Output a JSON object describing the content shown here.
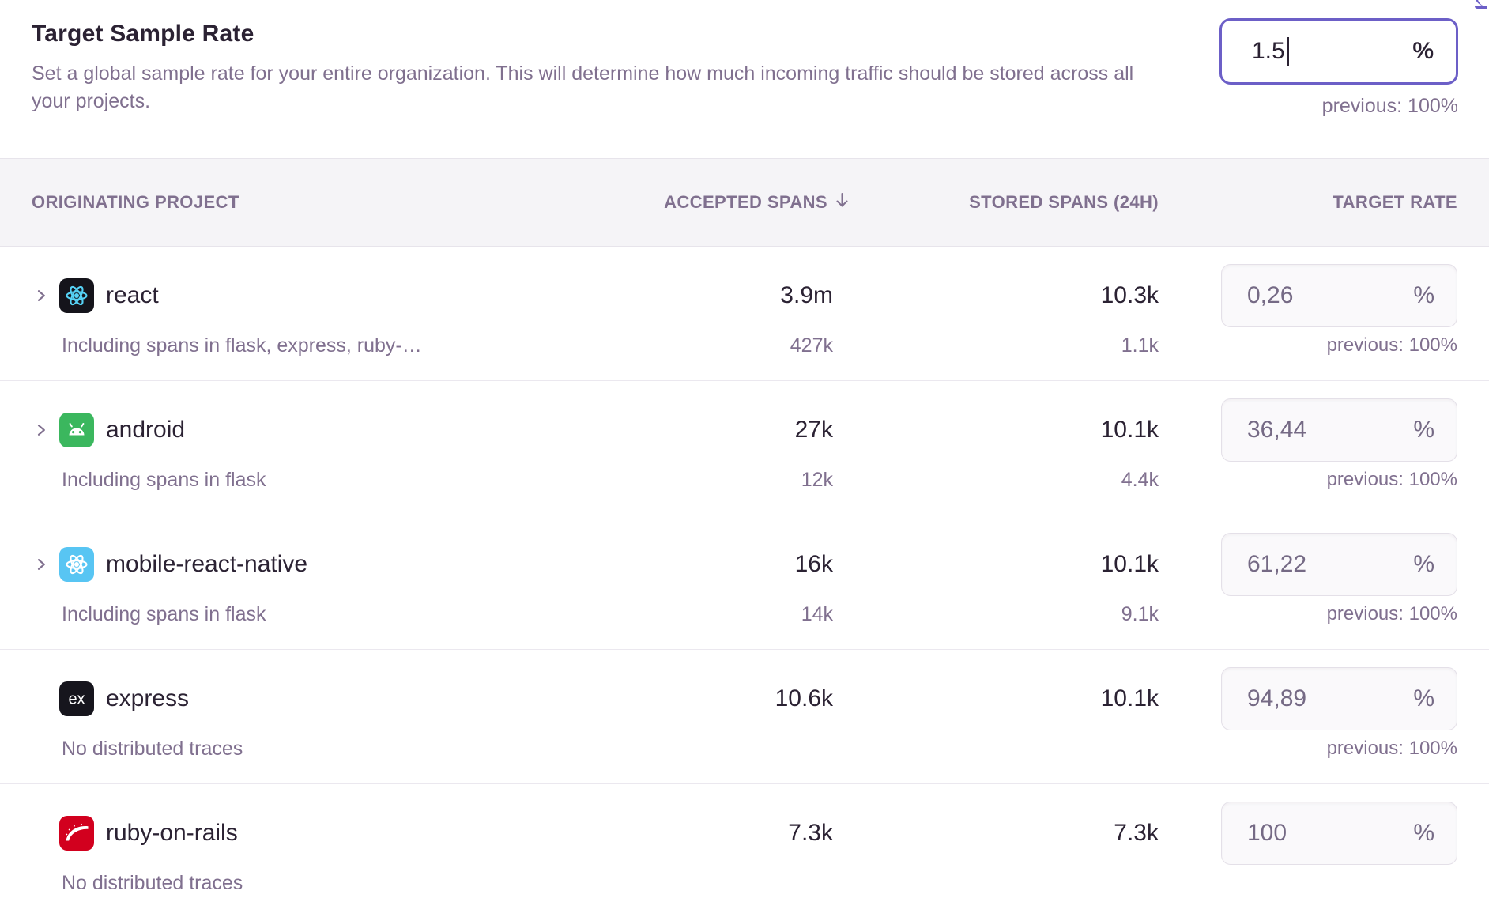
{
  "colors": {
    "accent": "#6c5fc7",
    "text": "#2b2233",
    "muted": "#80708f",
    "table_header_bg": "#f5f4f7"
  },
  "header": {
    "title": "Target Sample Rate",
    "description": "Set a global sample rate for your entire organization. This will determine how much incoming traffic should be stored across all your projects.",
    "input_value": "1.5",
    "input_unit": "%",
    "previous": "previous: 100%"
  },
  "table": {
    "col_project": "ORIGINATING PROJECT",
    "col_accepted": "ACCEPTED SPANS",
    "col_accepted_sort": "descending",
    "col_stored": "STORED SPANS (24H)",
    "col_rate": "TARGET RATE"
  },
  "rows": [
    {
      "project": "react",
      "icon": "react-icon",
      "expandable": true,
      "accepted": "3.9m",
      "stored": "10.3k",
      "rate": "0,26",
      "unit": "%",
      "sub_label": "Including spans in flask, express, ruby-…",
      "sub_accepted": "427k",
      "sub_stored": "1.1k",
      "previous": "previous: 100%"
    },
    {
      "project": "android",
      "icon": "android-icon",
      "expandable": true,
      "accepted": "27k",
      "stored": "10.1k",
      "rate": "36,44",
      "unit": "%",
      "sub_label": "Including spans in flask",
      "sub_accepted": "12k",
      "sub_stored": "4.4k",
      "previous": "previous: 100%"
    },
    {
      "project": "mobile-react-native",
      "icon": "react-native-icon",
      "expandable": true,
      "accepted": "16k",
      "stored": "10.1k",
      "rate": "61,22",
      "unit": "%",
      "sub_label": "Including spans in flask",
      "sub_accepted": "14k",
      "sub_stored": "9.1k",
      "previous": "previous: 100%"
    },
    {
      "project": "express",
      "icon": "express-icon",
      "expandable": false,
      "accepted": "10.6k",
      "stored": "10.1k",
      "rate": "94,89",
      "unit": "%",
      "sub_label": "No distributed traces",
      "sub_accepted": null,
      "sub_stored": null,
      "previous": "previous: 100%"
    },
    {
      "project": "ruby-on-rails",
      "icon": "rails-icon",
      "expandable": false,
      "accepted": "7.3k",
      "stored": "7.3k",
      "rate": "100",
      "unit": "%",
      "sub_label": "No distributed traces",
      "sub_accepted": null,
      "sub_stored": null,
      "previous": null
    }
  ]
}
